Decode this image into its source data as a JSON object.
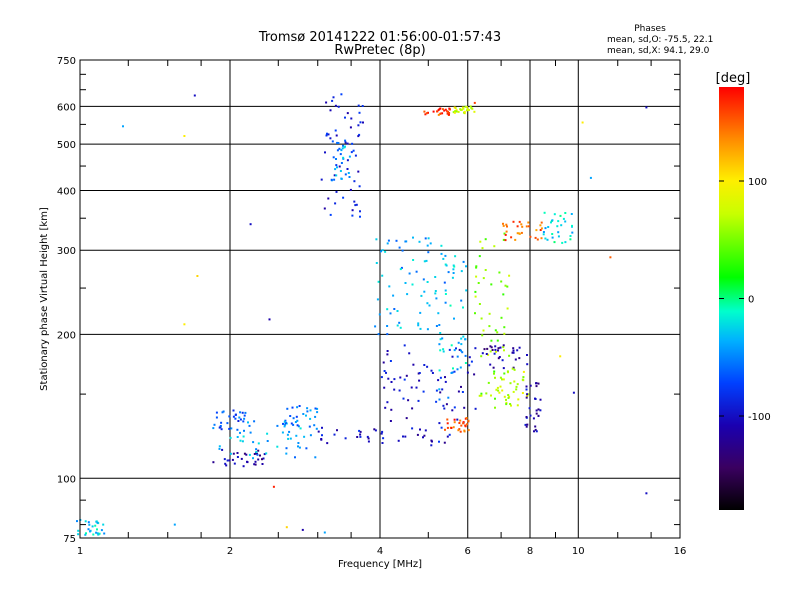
{
  "title": "Tromsø 20141222 01:56:00-01:57:43",
  "subtitle": "RwPretec (8p)",
  "phases": {
    "heading": "Phases",
    "line_o": "mean, sd,O: -75.5, 22.1",
    "line_x": "mean, sd,X:  94.1, 29.0"
  },
  "colorbar": {
    "label": "[deg]",
    "ticks": [
      "100",
      "0",
      "-100"
    ],
    "tick_values": [
      100,
      0,
      -100
    ],
    "range": [
      -180,
      180
    ]
  },
  "chart_data": {
    "type": "scatter",
    "title": "Tromsø 20141222 01:56:00-01:57:43",
    "subtitle": "RwPretec (8p)",
    "xlabel": "Frequency [MHz]",
    "ylabel": "Stationary phase Virtual Height [km]",
    "x_scale": "log",
    "y_scale": "log",
    "xlim": [
      1,
      16
    ],
    "ylim": [
      75,
      750
    ],
    "x_ticks": [
      1,
      2,
      4,
      6,
      8,
      10,
      16
    ],
    "x_tick_labels": [
      "1",
      "2",
      "4",
      "6",
      "8",
      "10",
      "16"
    ],
    "y_ticks": [
      75,
      100,
      200,
      300,
      400,
      500,
      600,
      750
    ],
    "y_tick_labels": [
      "75",
      "100",
      "200",
      "300",
      "400",
      "500",
      "600",
      "750"
    ],
    "grid": true,
    "color_by": "phase [deg]",
    "clusters": [
      {
        "x_range": [
          1.85,
          2.35
        ],
        "y_range": [
          105,
          116
        ],
        "phase": -112
      },
      {
        "x_range": [
          1.9,
          3.0
        ],
        "y_range": [
          110,
          132
        ],
        "phase": -42
      },
      {
        "x_range": [
          1.85,
          2.15
        ],
        "y_range": [
          126,
          140
        ],
        "phase": -68
      },
      {
        "x_range": [
          2.55,
          3.0
        ],
        "y_range": [
          128,
          143
        ],
        "phase": -52
      },
      {
        "x_range": [
          3.0,
          5.6
        ],
        "y_range": [
          117,
          128
        ],
        "phase": -100
      },
      {
        "x_range": [
          3.05,
          3.7
        ],
        "y_range": [
          350,
          640
        ],
        "phase": -95
      },
      {
        "x_range": [
          3.2,
          3.5
        ],
        "y_range": [
          420,
          520
        ],
        "phase": -40
      },
      {
        "x_range": [
          4.0,
          6.3
        ],
        "y_range": [
          130,
          190
        ],
        "phase": -100
      },
      {
        "x_range": [
          5.2,
          6.0
        ],
        "y_range": [
          140,
          300
        ],
        "phase": -30
      },
      {
        "x_range": [
          6.2,
          7.3
        ],
        "y_range": [
          145,
          330
        ],
        "phase": 55
      },
      {
        "x_range": [
          6.4,
          7.9
        ],
        "y_range": [
          170,
          190
        ],
        "phase": -115
      },
      {
        "x_range": [
          6.8,
          8.0
        ],
        "y_range": [
          140,
          170
        ],
        "phase": 70
      },
      {
        "x_range": [
          7.8,
          8.4
        ],
        "y_range": [
          125,
          160
        ],
        "phase": -110
      },
      {
        "x_range": [
          7.0,
          8.5
        ],
        "y_range": [
          315,
          345
        ],
        "phase": 150
      },
      {
        "x_range": [
          8.5,
          9.8
        ],
        "y_range": [
          310,
          360
        ],
        "phase": -20
      },
      {
        "x_range": [
          4.9,
          5.6
        ],
        "y_range": [
          575,
          595
        ],
        "phase": 160
      },
      {
        "x_range": [
          5.6,
          6.2
        ],
        "y_range": [
          580,
          600
        ],
        "phase": 80
      },
      {
        "x_range": [
          5.4,
          6.1
        ],
        "y_range": [
          125,
          135
        ],
        "phase": 155
      },
      {
        "x_range": [
          3.9,
          5.4
        ],
        "y_range": [
          200,
          320
        ],
        "phase": -40
      },
      {
        "x_range": [
          0.98,
          1.12
        ],
        "y_range": [
          76,
          82
        ],
        "phase": -30
      }
    ],
    "isolated_points": [
      {
        "x": 1.22,
        "y": 545,
        "phase": -40
      },
      {
        "x": 1.7,
        "y": 632,
        "phase": -100
      },
      {
        "x": 1.62,
        "y": 520,
        "phase": 100
      },
      {
        "x": 1.72,
        "y": 265,
        "phase": 110
      },
      {
        "x": 1.62,
        "y": 210,
        "phase": 100
      },
      {
        "x": 1.55,
        "y": 80,
        "phase": -40
      },
      {
        "x": 2.2,
        "y": 340,
        "phase": -100
      },
      {
        "x": 2.4,
        "y": 215,
        "phase": -110
      },
      {
        "x": 2.45,
        "y": 96,
        "phase": 170
      },
      {
        "x": 2.6,
        "y": 79,
        "phase": 110
      },
      {
        "x": 2.8,
        "y": 78,
        "phase": -110
      },
      {
        "x": 3.1,
        "y": 77,
        "phase": -40
      },
      {
        "x": 10.6,
        "y": 425,
        "phase": -40
      },
      {
        "x": 11.6,
        "y": 290,
        "phase": 150
      },
      {
        "x": 13.7,
        "y": 597,
        "phase": -100
      },
      {
        "x": 13.7,
        "y": 93,
        "phase": -100
      },
      {
        "x": 10.2,
        "y": 555,
        "phase": 100
      },
      {
        "x": 6.2,
        "y": 610,
        "phase": 160
      },
      {
        "x": 9.2,
        "y": 180,
        "phase": 100
      },
      {
        "x": 9.8,
        "y": 151,
        "phase": -100
      }
    ]
  }
}
